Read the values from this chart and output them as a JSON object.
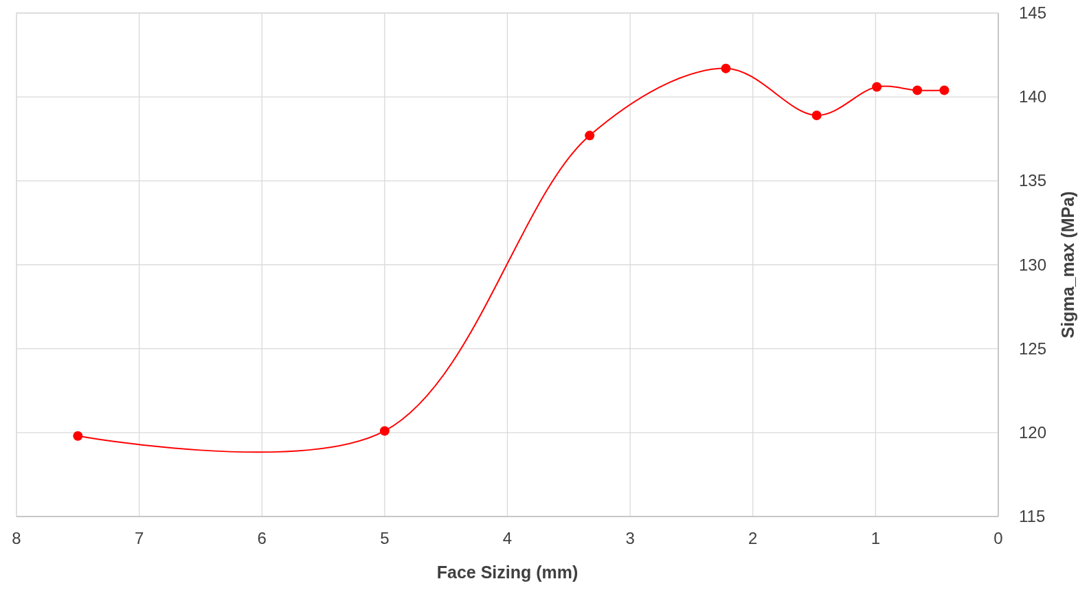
{
  "chart_data": {
    "type": "line",
    "xlabel": "Face Sizing (mm)",
    "ylabel": "Sigma_max (MPa)",
    "x": [
      7.5,
      5,
      3.33,
      2.22,
      1.48,
      0.99,
      0.66,
      0.44
    ],
    "series": [
      {
        "color": "#ff0000",
        "values": [
          119.8,
          120.1,
          137.7,
          141.7,
          138.9,
          140.6,
          140.4,
          140.4
        ]
      }
    ],
    "xlim": [
      8,
      0
    ],
    "xticks": [
      8,
      7,
      6,
      5,
      4,
      3,
      2,
      1,
      0
    ],
    "ylim": [
      115,
      145
    ],
    "yticks": [
      115,
      120,
      125,
      130,
      135,
      140,
      145
    ],
    "grid": true,
    "marker": "circle",
    "line_style": "solid"
  }
}
